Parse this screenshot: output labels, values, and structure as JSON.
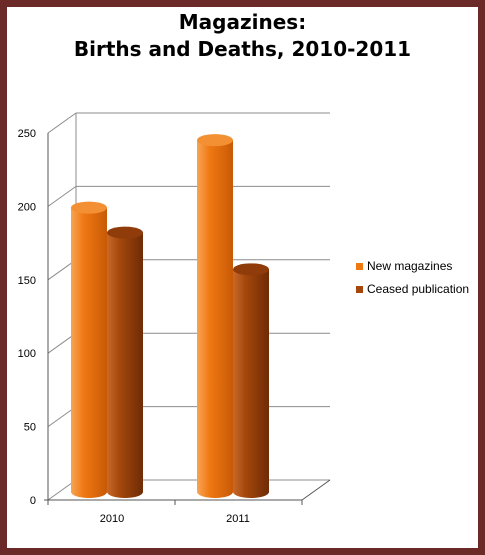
{
  "chart_data": {
    "type": "bar",
    "title_lines": [
      "Magazines:",
      "Births and Deaths, 2010-2011"
    ],
    "categories": [
      "2010",
      "2011"
    ],
    "series": [
      {
        "name": "New magazines",
        "values": [
          193,
          239
        ],
        "color": "#f07813"
      },
      {
        "name": "Ceased publication",
        "values": [
          176,
          151
        ],
        "color": "#a4470c"
      }
    ],
    "ylim": [
      0,
      250
    ],
    "yticks": [
      0,
      50,
      100,
      150,
      200,
      250
    ],
    "grid": true,
    "legend_position": "right",
    "style": "3d-cylinder"
  }
}
